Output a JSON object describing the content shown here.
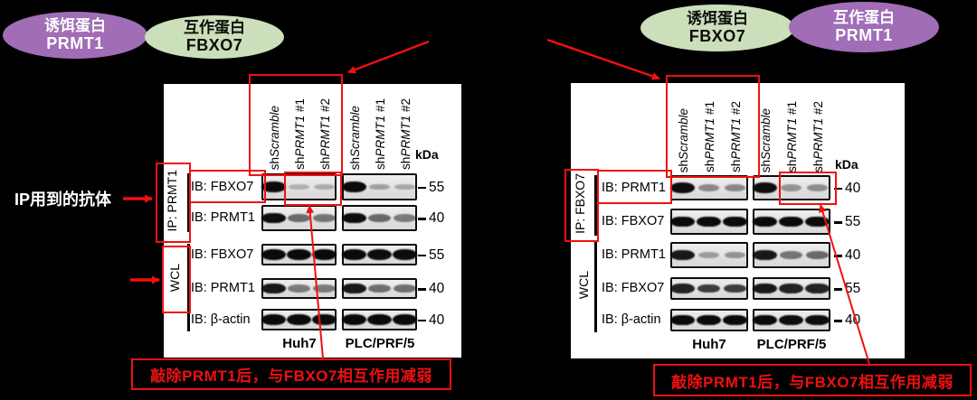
{
  "colors": {
    "background": "#000000",
    "red": "#f01010",
    "purple": "#a06db6",
    "green": "#cbdfba",
    "panel": "#ffffff"
  },
  "ovals": [
    {
      "role": "bait-left",
      "line1": "诱饵蛋白",
      "line2": "PRMT1",
      "variant": "purple"
    },
    {
      "role": "prey-left",
      "line1": "互作蛋白",
      "line2": "FBXO7",
      "variant": "green"
    },
    {
      "role": "bait-right",
      "line1": "诱饵蛋白",
      "line2": "FBXO7",
      "variant": "green"
    },
    {
      "role": "prey-right",
      "line1": "互作蛋白",
      "line2": "PRMT1",
      "variant": "purple"
    }
  ],
  "left_annotation": {
    "text": "IP用到的抗体"
  },
  "panels": [
    {
      "name": "left",
      "lane_labels": [
        {
          "pre": "sh",
          "italic": "Scramble",
          "post": ""
        },
        {
          "pre": "sh",
          "italic": "PRMT1",
          "post": " #1"
        },
        {
          "pre": "sh",
          "italic": "PRMT1",
          "post": " #2"
        },
        {
          "pre": "sh",
          "italic": "Scramble",
          "post": ""
        },
        {
          "pre": "sh",
          "italic": "PRMT1",
          "post": " #1"
        },
        {
          "pre": "sh",
          "italic": "PRMT1",
          "post": " #2"
        }
      ],
      "kda": "kDa",
      "ip_label": "IP: PRMT1",
      "wcl_label": "WCL",
      "cell_lines": [
        "Huh7",
        "PLC/PRF/5"
      ],
      "rows": [
        {
          "label": "IB: FBXO7",
          "marker": "55",
          "bands": [
            [
              1,
              0.16,
              0.18
            ],
            [
              1,
              0.24,
              0.2
            ]
          ]
        },
        {
          "label": "IB: PRMT1",
          "marker": "40",
          "bands": [
            [
              0.95,
              0.5,
              0.45
            ],
            [
              0.95,
              0.5,
              0.42
            ]
          ]
        },
        {
          "label": "IB: FBXO7",
          "marker": "55",
          "bands": [
            [
              1,
              1,
              1
            ],
            [
              1,
              0.95,
              0.95
            ]
          ]
        },
        {
          "label": "IB: PRMT1",
          "marker": "40",
          "bands": [
            [
              0.9,
              0.42,
              0.42
            ],
            [
              0.9,
              0.48,
              0.48
            ]
          ]
        },
        {
          "label": "IB: β-actin",
          "marker": "40",
          "bands": [
            [
              1,
              1,
              1
            ],
            [
              1,
              1,
              1
            ]
          ]
        }
      ],
      "callout": "敲除PRMT1后，与FBXO7相互作用减弱"
    },
    {
      "name": "right",
      "lane_labels": [
        {
          "pre": "sh",
          "italic": "Scramble",
          "post": ""
        },
        {
          "pre": "sh",
          "italic": "PRMT1",
          "post": " #1"
        },
        {
          "pre": "sh",
          "italic": "PRMT1",
          "post": " #2"
        },
        {
          "pre": "sh",
          "italic": "Scramble",
          "post": ""
        },
        {
          "pre": "sh",
          "italic": "PRMT1",
          "post": " #1"
        },
        {
          "pre": "sh",
          "italic": "PRMT1",
          "post": " #2"
        }
      ],
      "kda": "kDa",
      "ip_label": "IP: FBXO7",
      "wcl_label": "WCL",
      "cell_lines": [
        "Huh7",
        "PLC/PRF/5"
      ],
      "rows": [
        {
          "label": "IB: PRMT1",
          "marker": "40",
          "bands": [
            [
              0.95,
              0.35,
              0.35
            ],
            [
              0.95,
              0.3,
              0.33
            ]
          ]
        },
        {
          "label": "IB: FBXO7",
          "marker": "55",
          "bands": [
            [
              1,
              1,
              1
            ],
            [
              1,
              1,
              1
            ]
          ]
        },
        {
          "label": "IB: PRMT1",
          "marker": "40",
          "bands": [
            [
              0.9,
              0.25,
              0.3
            ],
            [
              0.9,
              0.45,
              0.5
            ]
          ]
        },
        {
          "label": "IB: FBXO7",
          "marker": "55",
          "bands": [
            [
              0.85,
              0.72,
              0.72
            ],
            [
              0.9,
              0.85,
              0.85
            ]
          ]
        },
        {
          "label": "IB: β-actin",
          "marker": "40",
          "bands": [
            [
              1,
              1,
              1
            ],
            [
              1,
              0.95,
              0.95
            ]
          ]
        }
      ],
      "callout": "敲除PRMT1后，与FBXO7相互作用减弱"
    }
  ]
}
